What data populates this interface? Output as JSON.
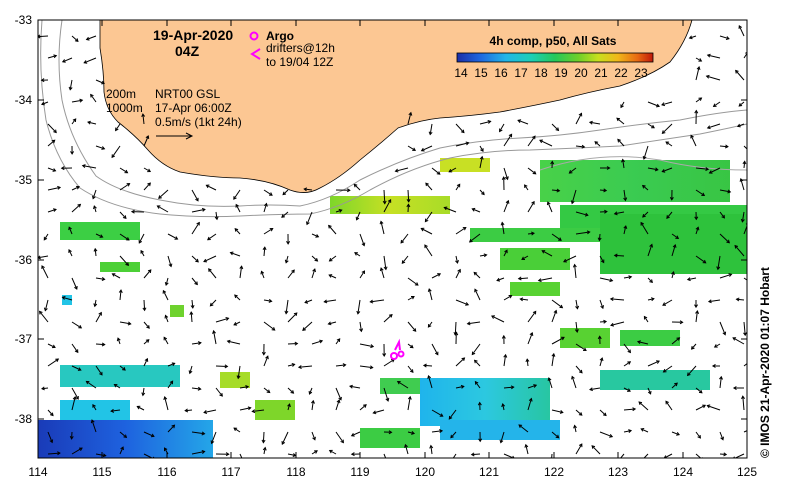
{
  "map": {
    "date": "19-Apr-2020",
    "time": "04Z",
    "argo_label": "Argo",
    "drifter_label_1": "drifters@12h",
    "drifter_label_2": "to 19/04 12Z",
    "isobath_1": "200m",
    "isobath_2": "1000m",
    "altimetry_1": "NRT00 GSL",
    "altimetry_2": "17-Apr 06:00Z",
    "vector_scale": "0.5m/s (1kt 24h)",
    "colorbar_title": "4h comp, p50, All Sats",
    "colorbar_ticks": [
      "14",
      "15",
      "16",
      "17",
      "18",
      "19",
      "20",
      "21",
      "22",
      "23"
    ],
    "credit": "©  IMOS 21-Apr-2020 01:07 Hobart",
    "x_ticks": [
      "114",
      "115",
      "116",
      "117",
      "118",
      "119",
      "120",
      "121",
      "122",
      "123",
      "124",
      "125"
    ],
    "y_ticks": [
      "-33",
      "-34",
      "-35",
      "-36",
      "-37",
      "-38"
    ],
    "colors": {
      "land": "#fcc793",
      "argo": "#ff00ff",
      "drifter": "#ff00ff"
    }
  }
}
